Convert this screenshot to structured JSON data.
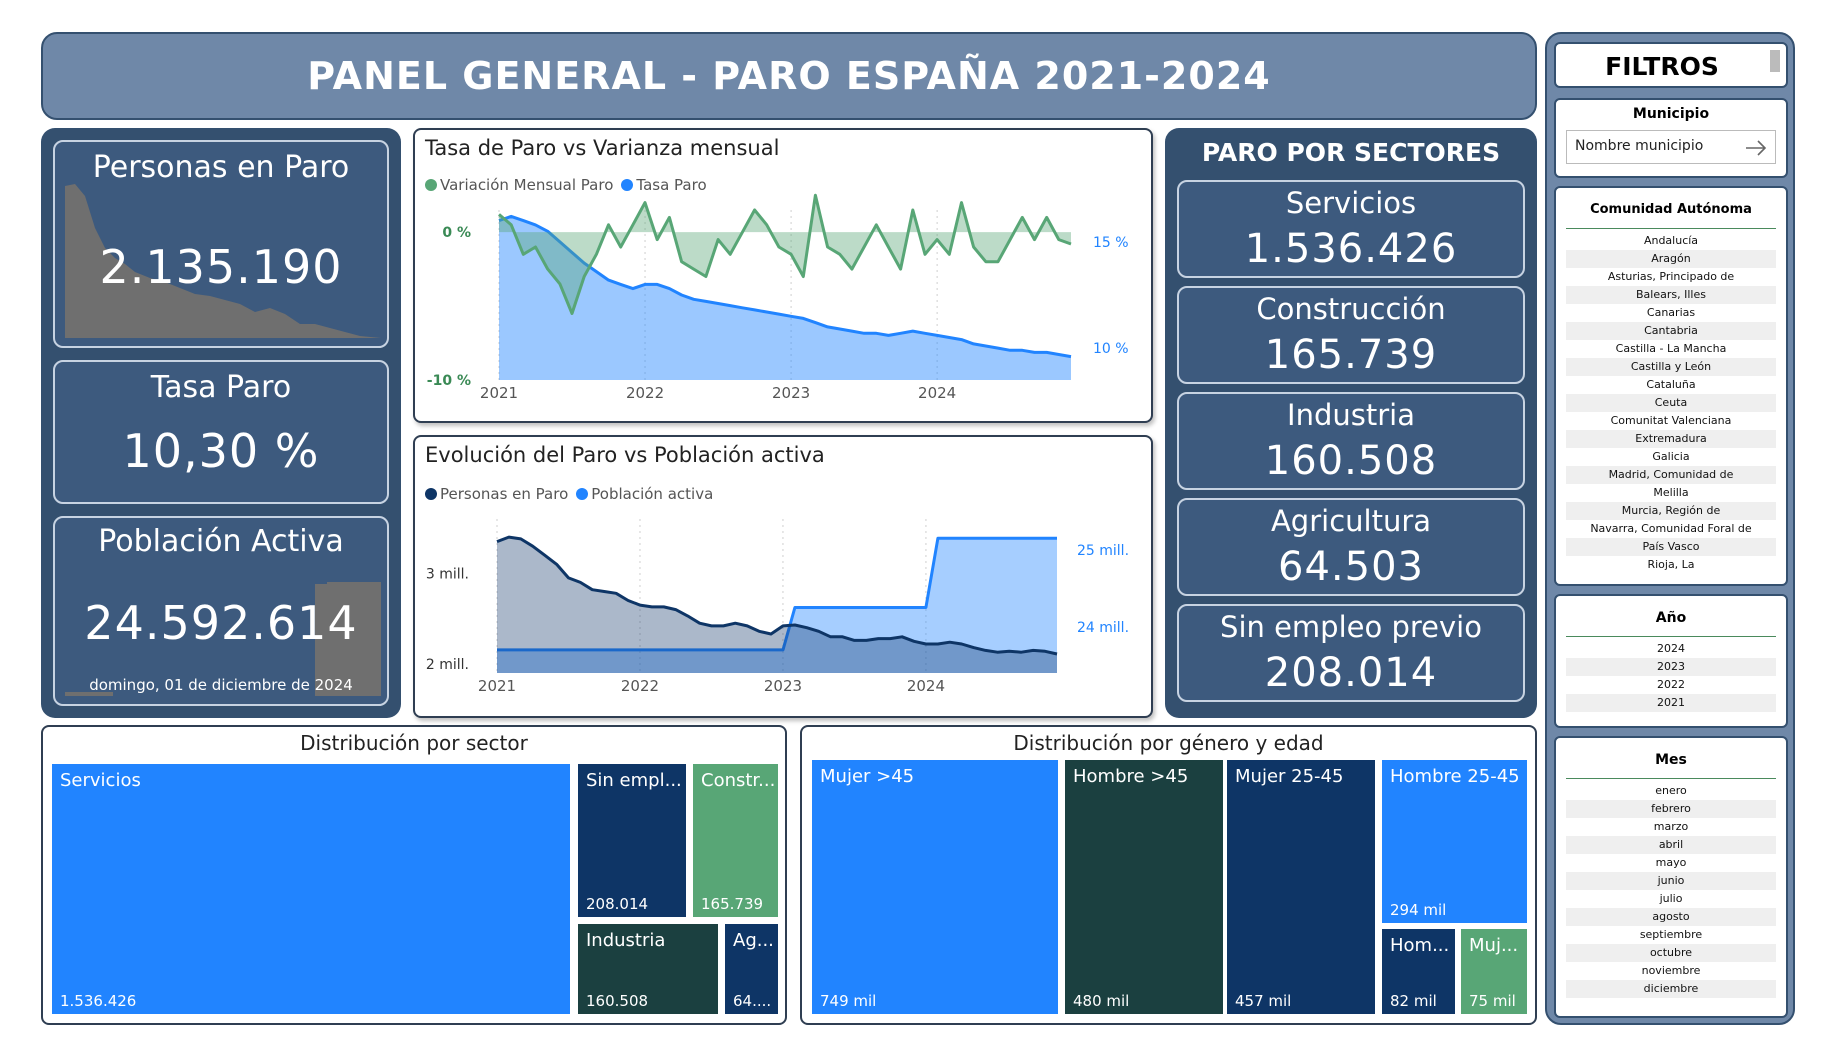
{
  "title": "PANEL GENERAL - PARO ESPAÑA 2021-2024",
  "kpis": {
    "personas_label": "Personas en Paro",
    "personas_value": "2.135.190",
    "tasa_label": "Tasa Paro",
    "tasa_value": "10,30 %",
    "poblacion_label": "Población Activa",
    "poblacion_value": "24.592.614",
    "date": "domingo, 01 de diciembre de 2024"
  },
  "chart1": {
    "title": "Tasa de Paro vs Varianza mensual",
    "legend": [
      "Variación Mensual Paro",
      "Tasa Paro"
    ],
    "left_ticks": [
      "0 %",
      "-10 %"
    ],
    "right_ticks": [
      "15 %",
      "10 %"
    ],
    "x_ticks": [
      "2021",
      "2022",
      "2023",
      "2024"
    ]
  },
  "chart2": {
    "title": "Evolución del Paro vs Población activa",
    "legend": [
      "Personas en Paro",
      "Población activa"
    ],
    "left_ticks": [
      "3 mill.",
      "2 mill."
    ],
    "right_ticks": [
      "25 mill.",
      "24 mill."
    ],
    "x_ticks": [
      "2021",
      "2022",
      "2023",
      "2024"
    ]
  },
  "chart_data": [
    {
      "type": "line",
      "title": "Tasa de Paro vs Varianza mensual",
      "x": [
        "2021",
        "",
        "",
        "",
        "",
        "",
        "",
        "",
        "",
        "",
        "",
        "",
        "2022",
        "",
        "",
        "",
        "",
        "",
        "",
        "",
        "",
        "",
        "",
        "",
        "2023",
        "",
        "",
        "",
        "",
        "",
        "",
        "",
        "",
        "",
        "",
        "",
        "2024",
        "",
        "",
        "",
        "",
        "",
        "",
        "",
        "",
        "",
        "",
        ""
      ],
      "series": [
        {
          "name": "Variación Mensual Paro",
          "axis": "left",
          "unit": "%",
          "values": [
            1.2,
            0.5,
            -1.5,
            -1.0,
            -2.5,
            -3.5,
            -5.5,
            -3.0,
            -1.5,
            0.5,
            -1.0,
            0.5,
            2.0,
            -0.5,
            1.0,
            -2.0,
            -2.5,
            -3.0,
            -0.5,
            -1.5,
            0.0,
            1.5,
            0.5,
            -1.0,
            -1.5,
            -3.0,
            2.5,
            -1.0,
            -1.5,
            -2.5,
            -1.0,
            0.5,
            -1.0,
            -2.5,
            1.5,
            -1.5,
            -0.5,
            -1.5,
            2.0,
            -1.0,
            -2.0,
            -2.0,
            -0.5,
            1.0,
            -0.5,
            1.0,
            -0.5,
            -0.8
          ]
        },
        {
          "name": "Tasa Paro",
          "axis": "right",
          "unit": "%",
          "values": [
            16.0,
            16.2,
            16.0,
            15.8,
            15.5,
            15.0,
            14.5,
            14.0,
            13.6,
            13.2,
            13.0,
            12.8,
            13.0,
            13.0,
            12.8,
            12.5,
            12.3,
            12.2,
            12.1,
            12.0,
            11.9,
            11.8,
            11.7,
            11.6,
            11.5,
            11.4,
            11.2,
            11.0,
            10.9,
            10.8,
            10.7,
            10.7,
            10.6,
            10.7,
            10.8,
            10.7,
            10.6,
            10.5,
            10.4,
            10.2,
            10.1,
            10.0,
            9.9,
            9.9,
            9.8,
            9.8,
            9.7,
            9.6
          ]
        }
      ],
      "ylim_left": [
        -10,
        1.5
      ],
      "ylim_right": [
        8.5,
        16.5
      ]
    },
    {
      "type": "area",
      "title": "Evolución del Paro vs Población activa",
      "x": [
        "2021",
        "",
        "",
        "",
        "",
        "",
        "",
        "",
        "",
        "",
        "",
        "",
        "2022",
        "",
        "",
        "",
        "",
        "",
        "",
        "",
        "",
        "",
        "",
        "",
        "2023",
        "",
        "",
        "",
        "",
        "",
        "",
        "",
        "",
        "",
        "",
        "",
        "2024",
        "",
        "",
        "",
        "",
        "",
        "",
        "",
        "",
        "",
        "",
        ""
      ],
      "series": [
        {
          "name": "Personas en Paro",
          "axis": "left",
          "unit": "mill.",
          "values": [
            3.35,
            3.4,
            3.38,
            3.3,
            3.2,
            3.1,
            2.95,
            2.9,
            2.82,
            2.8,
            2.78,
            2.7,
            2.65,
            2.63,
            2.63,
            2.6,
            2.53,
            2.45,
            2.42,
            2.42,
            2.45,
            2.42,
            2.36,
            2.33,
            2.42,
            2.43,
            2.4,
            2.36,
            2.3,
            2.3,
            2.26,
            2.26,
            2.28,
            2.28,
            2.3,
            2.25,
            2.22,
            2.22,
            2.24,
            2.22,
            2.18,
            2.15,
            2.13,
            2.14,
            2.13,
            2.15,
            2.14,
            2.11
          ]
        },
        {
          "name": "Población activa",
          "axis": "right",
          "unit": "mill.",
          "values": [
            23.7,
            23.7,
            23.7,
            23.7,
            23.7,
            23.7,
            23.7,
            23.7,
            23.7,
            23.7,
            23.7,
            23.7,
            23.7,
            23.7,
            23.7,
            23.7,
            23.7,
            23.7,
            23.7,
            23.7,
            23.7,
            23.7,
            23.7,
            23.7,
            23.7,
            24.25,
            24.25,
            24.25,
            24.25,
            24.25,
            24.25,
            24.25,
            24.25,
            24.25,
            24.25,
            24.25,
            24.25,
            25.15,
            25.15,
            25.15,
            25.15,
            25.15,
            25.15,
            25.15,
            25.15,
            25.15,
            25.15,
            25.15
          ]
        }
      ],
      "ylim_left": [
        1.9,
        3.6
      ],
      "ylim_right": [
        23.4,
        25.4
      ]
    }
  ],
  "sectores": {
    "header": "PARO POR SECTORES",
    "items": [
      {
        "label": "Servicios",
        "value": "1.536.426"
      },
      {
        "label": "Construcción",
        "value": "165.739"
      },
      {
        "label": "Industria",
        "value": "160.508"
      },
      {
        "label": "Agricultura",
        "value": "64.503"
      },
      {
        "label": "Sin empleo previo",
        "value": "208.014"
      }
    ]
  },
  "tree_sector": {
    "title": "Distribución por sector",
    "tiles": [
      {
        "label": "Servicios",
        "value": "1.536.426",
        "color": "#2184ff"
      },
      {
        "label": "Sin empl...",
        "value": "208.014",
        "color": "#0e3566"
      },
      {
        "label": "Constr...",
        "value": "165.739",
        "color": "#58a676"
      },
      {
        "label": "Industria",
        "value": "160.508",
        "color": "#1b4040"
      },
      {
        "label": "Ag...",
        "value": "64....",
        "color": "#0e3566"
      }
    ]
  },
  "tree_genero": {
    "title": "Distribución por género y edad",
    "tiles": [
      {
        "label": "Mujer >45",
        "value": "749 mil",
        "color": "#2184ff"
      },
      {
        "label": "Hombre >45",
        "value": "480 mil",
        "color": "#1b4040"
      },
      {
        "label": "Mujer 25-45",
        "value": "457 mil",
        "color": "#0e3566"
      },
      {
        "label": "Hombre 25-45",
        "value": "294 mil",
        "color": "#2184ff"
      },
      {
        "label": "Hom...",
        "value": "82 mil",
        "color": "#0e3566"
      },
      {
        "label": "Muj...",
        "value": "75 mil",
        "color": "#58a676"
      }
    ]
  },
  "filters": {
    "header": "FILTROS",
    "municipio": {
      "label": "Municipio",
      "placeholder": "Nombre municipio"
    },
    "comunidad": {
      "label": "Comunidad Autónoma",
      "items": [
        "Andalucía",
        "Aragón",
        "Asturias, Principado de",
        "Balears, Illes",
        "Canarias",
        "Cantabria",
        "Castilla - La Mancha",
        "Castilla y León",
        "Cataluña",
        "Ceuta",
        "Comunitat Valenciana",
        "Extremadura",
        "Galicia",
        "Madrid, Comunidad de",
        "Melilla",
        "Murcia, Región de",
        "Navarra, Comunidad Foral de",
        "País Vasco",
        "Rioja, La"
      ]
    },
    "anio": {
      "label": "Año",
      "items": [
        "2024",
        "2023",
        "2022",
        "2021"
      ]
    },
    "mes": {
      "label": "Mes",
      "items": [
        "enero",
        "febrero",
        "marzo",
        "abril",
        "mayo",
        "junio",
        "julio",
        "agosto",
        "septiembre",
        "octubre",
        "noviembre",
        "diciembre"
      ]
    }
  },
  "colors": {
    "panel_dark": "#34506f",
    "card": "#3d5a7e",
    "green": "#58a676",
    "blue": "#2184ff",
    "navy": "#0e3566"
  }
}
